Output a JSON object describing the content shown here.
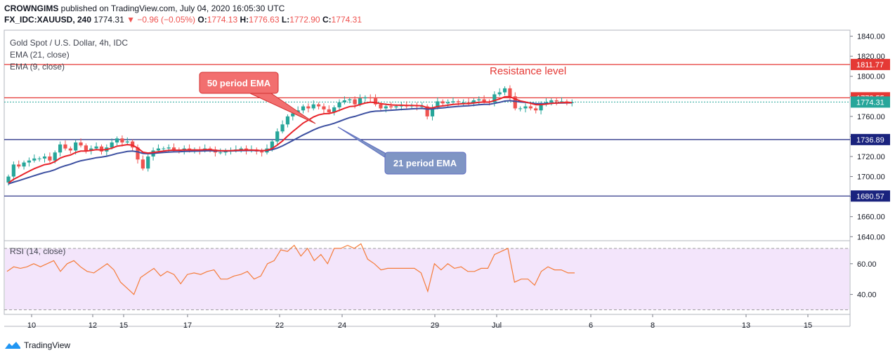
{
  "header": {
    "author": "CROWNGIMS",
    "published_text": "published on TradingView.com, July 04, 2020 16:05:30 UTC",
    "symbol": "FX_IDC:XAUUSD, 240",
    "last": "1774.31",
    "change": "▼ −0.96 (−0.05%)",
    "o_label": "O:",
    "o_value": "1774.13",
    "h_label": "H:",
    "h_value": "1776.63",
    "l_label": "L:",
    "l_value": "1772.90",
    "c_label": "C:",
    "c_value": "1774.31"
  },
  "legend": {
    "instrument": "Gold Spot / U.S. Dollar, 4h, IDC",
    "ema21": "EMA (21, close)",
    "ema9": "EMA (9, close)",
    "rsi": "RSI (14, close)"
  },
  "annotations": {
    "ema50": "50 period EMA",
    "ema21": "21 period EMA",
    "resistance": "Resistance level"
  },
  "footer": {
    "brand": "TradingView"
  },
  "colors": {
    "up": "#26a69a",
    "down": "#ef5350",
    "ema_fast": "#e8232a",
    "ema_slow": "#3c4fa0",
    "resistance_line": "#e53935",
    "support_line": "#1a237e",
    "rsi_line": "#f57c3a",
    "rsi_band": "#f3e5fb"
  },
  "chart_data": {
    "type": "candlestick",
    "y_ticks": [
      1840,
      1820,
      1800,
      1780,
      1760,
      1740,
      1720,
      1700,
      1680,
      1660,
      1640
    ],
    "y_range": [
      1636,
      1846
    ],
    "x_ticks": [
      "10",
      "12",
      "15",
      "17",
      "22",
      "24",
      "29",
      "Jul",
      "6",
      "8",
      "13",
      "15"
    ],
    "horizontal_levels": [
      {
        "label": "1811.77",
        "value": 1811.77,
        "color": "#e53935",
        "style": "solid"
      },
      {
        "label": "1778.55",
        "value": 1778.55,
        "color": "#e53935",
        "style": "solid"
      },
      {
        "label": "1774.31",
        "value": 1774.31,
        "color": "#26a69a",
        "style": "dotted"
      },
      {
        "label": "1736.89",
        "value": 1736.89,
        "color": "#1a237e",
        "style": "solid"
      },
      {
        "label": "1680.57",
        "value": 1680.57,
        "color": "#1a237e",
        "style": "solid"
      }
    ],
    "close": [
      1700,
      1712,
      1710,
      1714,
      1716,
      1718,
      1718,
      1720,
      1716,
      1724,
      1732,
      1728,
      1726,
      1734,
      1731,
      1726,
      1728,
      1730,
      1725,
      1729,
      1734,
      1738,
      1734,
      1735,
      1729,
      1717,
      1708,
      1720,
      1726,
      1728,
      1728,
      1729,
      1727,
      1726,
      1728,
      1726,
      1727,
      1726,
      1728,
      1727,
      1724,
      1724,
      1726,
      1726,
      1727,
      1728,
      1726,
      1727,
      1725,
      1724,
      1728,
      1735,
      1745,
      1752,
      1760,
      1763,
      1766,
      1770,
      1768,
      1772,
      1770,
      1767,
      1764,
      1769,
      1774,
      1776,
      1777,
      1772,
      1778,
      1779,
      1778,
      1772,
      1768,
      1770,
      1769,
      1770,
      1771,
      1770,
      1771,
      1770,
      1770,
      1760,
      1769,
      1775,
      1773,
      1774,
      1775,
      1774,
      1774,
      1773,
      1776,
      1777,
      1775,
      1774,
      1782,
      1784,
      1788,
      1780,
      1768,
      1768,
      1770,
      1768,
      1766,
      1772,
      1774,
      1776,
      1775,
      1775,
      1774,
      1774
    ],
    "rsi": {
      "levels": [
        70,
        30
      ],
      "y_ticks": [
        60,
        40
      ],
      "y_range": [
        27,
        75
      ],
      "values": [
        55,
        58,
        57,
        58,
        60,
        58,
        60,
        62,
        55,
        60,
        62,
        58,
        55,
        54,
        57,
        60,
        56,
        48,
        44,
        40,
        51,
        54,
        57,
        52,
        55,
        53,
        47,
        53,
        54,
        53,
        55,
        56,
        50,
        50,
        52,
        53,
        55,
        50,
        52,
        60,
        62,
        69,
        68,
        72,
        65,
        70,
        62,
        66,
        60,
        70,
        70,
        72,
        70,
        73,
        63,
        60,
        56,
        57,
        57,
        57,
        57,
        57,
        54,
        42,
        60,
        56,
        60,
        57,
        58,
        55,
        55,
        57,
        57,
        66,
        68,
        70,
        48,
        50,
        50,
        46,
        55,
        58,
        56,
        56,
        54,
        54
      ]
    }
  }
}
